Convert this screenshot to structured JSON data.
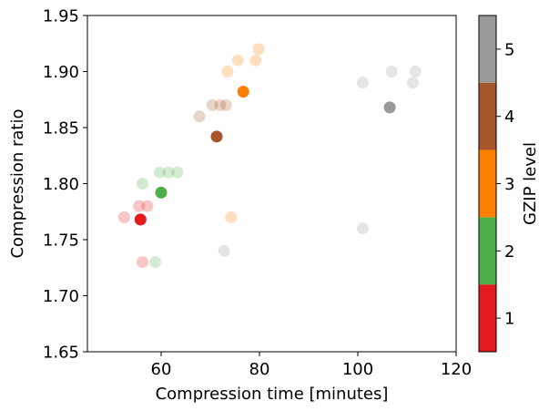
{
  "chart_data": {
    "type": "scatter",
    "xlabel": "Compression time [minutes]",
    "ylabel": "Compression ratio",
    "xlim": [
      45,
      120
    ],
    "ylim": [
      1.65,
      1.95
    ],
    "xticks": [
      "60",
      "80",
      "100",
      "120"
    ],
    "yticks": [
      "1.65",
      "1.70",
      "1.75",
      "1.80",
      "1.85",
      "1.90",
      "1.95"
    ],
    "grid": false,
    "colorbar": {
      "label": "GZIP level",
      "ticks": [
        "1",
        "2",
        "3",
        "4",
        "5"
      ],
      "colors": [
        "#e41a1c",
        "#4daf4a",
        "#ff7f00",
        "#a65628",
        "#999999"
      ]
    },
    "series": [
      {
        "level": 1,
        "color": "#e41a1c",
        "points": [
          [
            52.5,
            1.77
          ],
          [
            55.5,
            1.78
          ],
          [
            56.2,
            1.73
          ],
          [
            57.2,
            1.78
          ]
        ],
        "highlight": [
          55.8,
          1.768
        ]
      },
      {
        "level": 2,
        "color": "#4daf4a",
        "points": [
          [
            56.2,
            1.8
          ],
          [
            58.8,
            1.73
          ],
          [
            59.7,
            1.81
          ],
          [
            61.5,
            1.81
          ],
          [
            63.3,
            1.81
          ]
        ],
        "highlight": [
          60.0,
          1.792
        ]
      },
      {
        "level": 3,
        "color": "#ff7f00",
        "points": [
          [
            73.5,
            1.9
          ],
          [
            75.6,
            1.91
          ],
          [
            74.2,
            1.77
          ],
          [
            79.2,
            1.91
          ],
          [
            79.8,
            1.92
          ]
        ],
        "highlight": [
          76.7,
          1.882
        ]
      },
      {
        "level": 4,
        "color": "#a65628",
        "points": [
          [
            67.8,
            1.86
          ],
          [
            70.4,
            1.87
          ],
          [
            72.0,
            1.87
          ],
          [
            73.2,
            1.87
          ]
        ],
        "highlight": [
          71.3,
          1.842
        ]
      },
      {
        "level": 5,
        "color": "#999999",
        "points": [
          [
            72.8,
            1.74
          ],
          [
            101.0,
            1.89
          ],
          [
            101.0,
            1.76
          ],
          [
            106.9,
            1.9
          ],
          [
            111.2,
            1.89
          ],
          [
            111.7,
            1.9
          ]
        ],
        "highlight": [
          106.5,
          1.868
        ]
      }
    ]
  }
}
